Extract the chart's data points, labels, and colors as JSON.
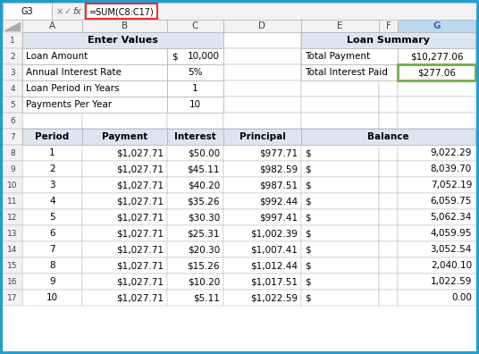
{
  "formula_bar_text": "=SUM(C8:C17)",
  "cell_ref": "G3",
  "col_headers": [
    "A",
    "B",
    "C",
    "D",
    "E",
    "F",
    "G"
  ],
  "enter_values_header": "Enter Values",
  "loan_summary_header": "Loan Summary",
  "input_labels": [
    "Loan Amount",
    "Annual Interest Rate",
    "Loan Period in Years",
    "Payments Per Year"
  ],
  "input_col1": [
    "$",
    "",
    "",
    ""
  ],
  "input_col2": [
    "10,000",
    "5%",
    "1",
    "10"
  ],
  "summary_labels": [
    "Total Payment",
    "Total Interest Paid"
  ],
  "summary_values": [
    "$10,277.06",
    "$277.06"
  ],
  "sched_headers": [
    "Period",
    "Payment",
    "Interest",
    "Principal",
    "Balance"
  ],
  "sched_data": [
    [
      "1",
      "$1,027.71",
      "$50.00",
      "$977.71",
      "$",
      "9,022.29"
    ],
    [
      "2",
      "$1,027.71",
      "$45.11",
      "$982.59",
      "$",
      "8,039.70"
    ],
    [
      "3",
      "$1,027.71",
      "$40.20",
      "$987.51",
      "$",
      "7,052.19"
    ],
    [
      "4",
      "$1,027.71",
      "$35.26",
      "$992.44",
      "$",
      "6,059.75"
    ],
    [
      "5",
      "$1,027.71",
      "$30.30",
      "$997.41",
      "$",
      "5,062.34"
    ],
    [
      "6",
      "$1,027.71",
      "$25.31",
      "$1,002.39",
      "$",
      "4,059.95"
    ],
    [
      "7",
      "$1,027.71",
      "$20.30",
      "$1,007.41",
      "$",
      "3,052.54"
    ],
    [
      "8",
      "$1,027.71",
      "$15.26",
      "$1,012.44",
      "$",
      "2,040.10"
    ],
    [
      "9",
      "$1,027.71",
      "$10.20",
      "$1,017.51",
      "$",
      "1,022.59"
    ],
    [
      "10",
      "$1,027.71",
      "$5.11",
      "$1,022.59",
      "$",
      "0.00"
    ]
  ],
  "header_bg": "#dce6f1",
  "grid_color": "#b0b0b0",
  "outer_border": "#1f9ed1",
  "formula_highlight": "#ff0000",
  "selected_col_bg": "#bdd7ee",
  "selected_cell_border": "#70ad47",
  "row_hdr_bg": "#f2f2f2",
  "col_hdr_bg": "#f2f2f2"
}
